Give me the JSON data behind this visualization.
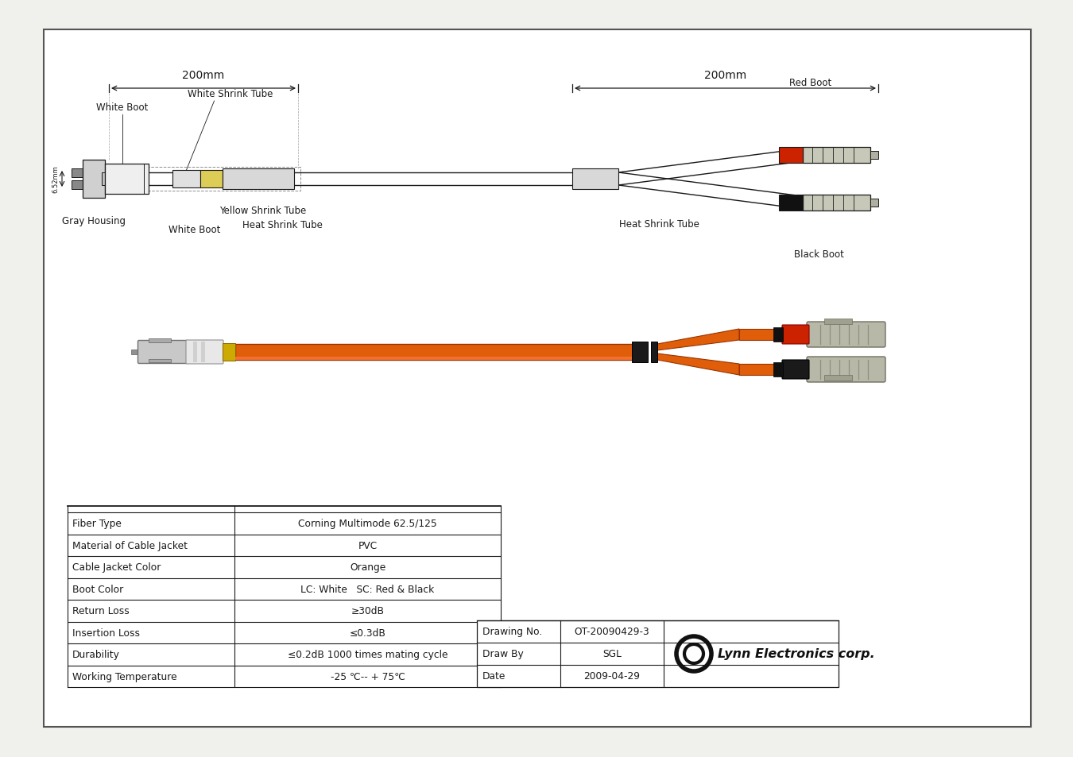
{
  "bg_color": "#f0f0ec",
  "page_bg": "#ffffff",
  "border_color": "#333333",
  "line_color": "#1a1a1a",
  "table_rows": [
    [
      "Fiber Type",
      "Corning Multimode 62.5/125"
    ],
    [
      "Material of Cable Jacket",
      "PVC"
    ],
    [
      "Cable Jacket Color",
      "Orange"
    ],
    [
      "Boot Color",
      "LC: White   SC: Red & Black"
    ],
    [
      "Return Loss",
      "≥30dB"
    ],
    [
      "Insertion Loss",
      "≤0.3dB"
    ],
    [
      "Durability",
      "≤0.2dB 1000 times mating cycle"
    ],
    [
      "Working Temperature",
      "-25 ℃-- + 75℃"
    ]
  ],
  "drawing_info": [
    [
      "Drawing No.",
      "OT-20090429-3"
    ],
    [
      "Draw By",
      "SGL"
    ],
    [
      "Date",
      "2009-04-29"
    ]
  ],
  "company_name": "Lynn Electronics corp.",
  "dim_200mm": "200mm",
  "label_gray_housing": "Gray Housing",
  "label_white_boot_top": "White Boot",
  "label_white_boot_bottom": "White Boot",
  "label_white_shrink": "White Shrink Tube",
  "label_yellow_shrink": "Yellow Shrink Tube",
  "label_heat_shrink_mid": "Heat Shrink Tube",
  "label_heat_shrink_right": "Heat Shrink Tube",
  "label_red_boot": "Red Boot",
  "label_black_boot": "Black Boot",
  "label_652mm": "6.52mm",
  "orange_color": "#e05e0a",
  "red_boot_color": "#cc2200",
  "gray_color": "#aaaaaa",
  "black_color": "#111111",
  "yellow_color": "#ccaa00",
  "connector_gray": "#b0b0a0"
}
